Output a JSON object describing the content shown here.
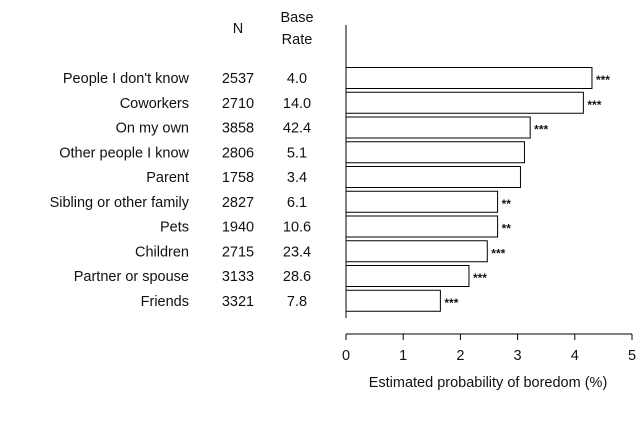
{
  "chart_data": {
    "type": "bar",
    "orientation": "horizontal",
    "title": "",
    "xlabel": "Estimated probability of boredom (%)",
    "ylabel": "",
    "xlim": [
      0,
      5
    ],
    "xticks": [
      0,
      1,
      2,
      3,
      4,
      5
    ],
    "grid": false,
    "legend": "none",
    "bar_fill": "#ffffff",
    "bar_stroke": "#000000",
    "columns": {
      "n_header": "N",
      "base_rate_header": [
        "Base",
        "Rate"
      ]
    },
    "categories": [
      "People I don't know",
      "Coworkers",
      "On my own",
      "Other people I know",
      "Parent",
      "Sibling or other family",
      "Pets",
      "Children",
      "Partner or spouse",
      "Friends"
    ],
    "n": [
      "2537",
      "2710",
      "3858",
      "2806",
      "1758",
      "2827",
      "1940",
      "2715",
      "3133",
      "3321"
    ],
    "base_rate": [
      "4.0",
      "14.0",
      "42.4",
      "5.1",
      "3.4",
      "6.1",
      "10.6",
      "23.4",
      "28.6",
      "7.8"
    ],
    "values": [
      4.3,
      4.15,
      3.22,
      3.12,
      3.05,
      2.65,
      2.65,
      2.47,
      2.15,
      1.65
    ],
    "significance": [
      "***",
      "***",
      "***",
      "",
      "",
      "**",
      "**",
      "***",
      "***",
      "***"
    ]
  }
}
